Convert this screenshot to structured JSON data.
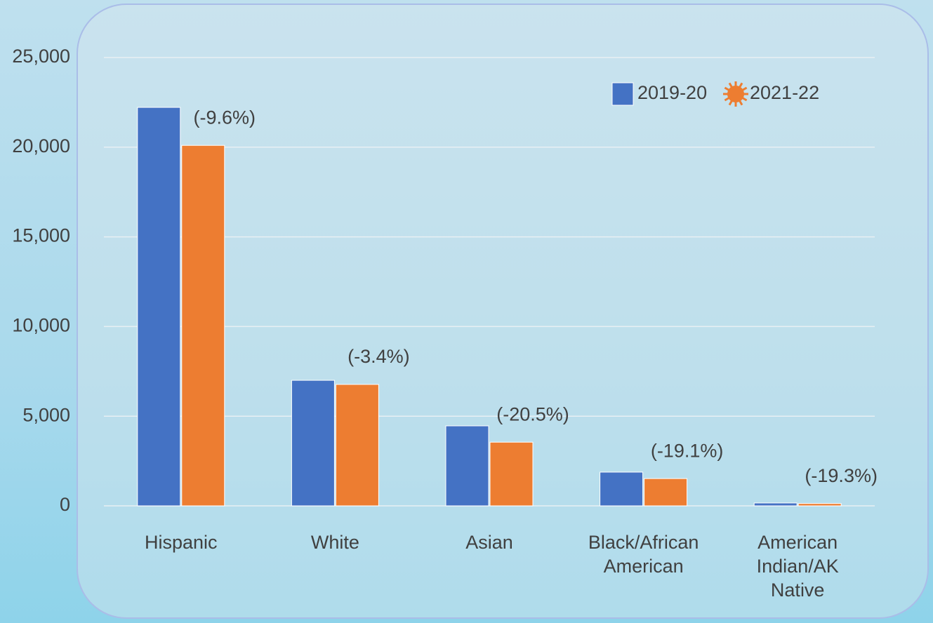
{
  "chart_data": {
    "type": "bar",
    "categories": [
      "Hispanic",
      "White",
      "Asian",
      "Black/African American",
      "American Indian/AK Native"
    ],
    "series": [
      {
        "name": "2019-20",
        "color": "#4472c4",
        "values": [
          22220,
          7000,
          4460,
          1880,
          160
        ]
      },
      {
        "name": "2021-22",
        "color": "#ed7d31",
        "values": [
          20100,
          6770,
          3550,
          1520,
          130
        ]
      }
    ],
    "annotations": [
      "(-9.6%)",
      "(-3.4%)",
      "(-20.5%)",
      "(-19.1%)",
      "(-19.3%)"
    ],
    "ylim": [
      0,
      25000
    ],
    "yticks": [
      0,
      {
        "value": 5000,
        "label": "5,000"
      },
      {
        "value": 10000,
        "label": "10,000"
      },
      {
        "value": 15000,
        "label": "15,000"
      },
      {
        "value": 20000,
        "label": "20,000"
      },
      {
        "value": 25000,
        "label": "25,000"
      }
    ],
    "grid": true,
    "legend": "top-right"
  }
}
